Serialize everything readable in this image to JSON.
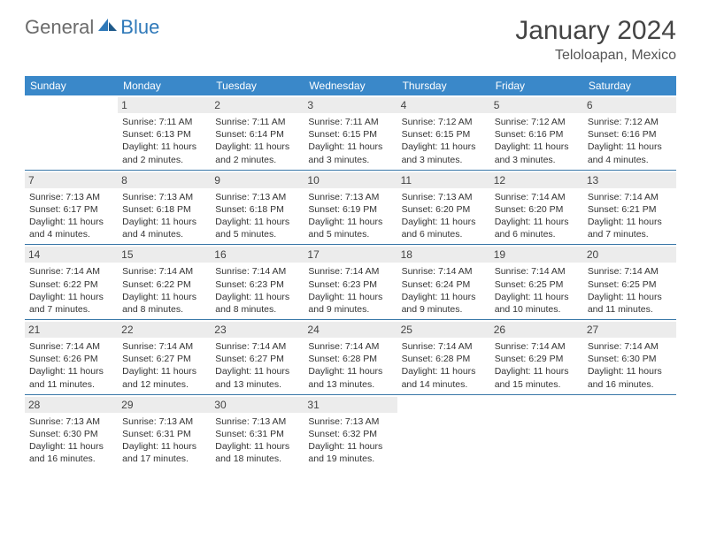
{
  "brand": {
    "g": "General",
    "b": "Blue"
  },
  "title": "January 2024",
  "location": "Teloloapan, Mexico",
  "colors": {
    "header_bg": "#3a88c9",
    "header_text": "#ffffff",
    "daynum_bg": "#ececec",
    "border": "#3a78a8",
    "logo_gray": "#6b6b6b",
    "logo_blue": "#2f79b9"
  },
  "weekdays": [
    "Sunday",
    "Monday",
    "Tuesday",
    "Wednesday",
    "Thursday",
    "Friday",
    "Saturday"
  ],
  "first_weekday_index": 1,
  "days": [
    {
      "n": 1,
      "sr": "7:11 AM",
      "ss": "6:13 PM",
      "dl": "11 hours and 2 minutes."
    },
    {
      "n": 2,
      "sr": "7:11 AM",
      "ss": "6:14 PM",
      "dl": "11 hours and 2 minutes."
    },
    {
      "n": 3,
      "sr": "7:11 AM",
      "ss": "6:15 PM",
      "dl": "11 hours and 3 minutes."
    },
    {
      "n": 4,
      "sr": "7:12 AM",
      "ss": "6:15 PM",
      "dl": "11 hours and 3 minutes."
    },
    {
      "n": 5,
      "sr": "7:12 AM",
      "ss": "6:16 PM",
      "dl": "11 hours and 3 minutes."
    },
    {
      "n": 6,
      "sr": "7:12 AM",
      "ss": "6:16 PM",
      "dl": "11 hours and 4 minutes."
    },
    {
      "n": 7,
      "sr": "7:13 AM",
      "ss": "6:17 PM",
      "dl": "11 hours and 4 minutes."
    },
    {
      "n": 8,
      "sr": "7:13 AM",
      "ss": "6:18 PM",
      "dl": "11 hours and 4 minutes."
    },
    {
      "n": 9,
      "sr": "7:13 AM",
      "ss": "6:18 PM",
      "dl": "11 hours and 5 minutes."
    },
    {
      "n": 10,
      "sr": "7:13 AM",
      "ss": "6:19 PM",
      "dl": "11 hours and 5 minutes."
    },
    {
      "n": 11,
      "sr": "7:13 AM",
      "ss": "6:20 PM",
      "dl": "11 hours and 6 minutes."
    },
    {
      "n": 12,
      "sr": "7:14 AM",
      "ss": "6:20 PM",
      "dl": "11 hours and 6 minutes."
    },
    {
      "n": 13,
      "sr": "7:14 AM",
      "ss": "6:21 PM",
      "dl": "11 hours and 7 minutes."
    },
    {
      "n": 14,
      "sr": "7:14 AM",
      "ss": "6:22 PM",
      "dl": "11 hours and 7 minutes."
    },
    {
      "n": 15,
      "sr": "7:14 AM",
      "ss": "6:22 PM",
      "dl": "11 hours and 8 minutes."
    },
    {
      "n": 16,
      "sr": "7:14 AM",
      "ss": "6:23 PM",
      "dl": "11 hours and 8 minutes."
    },
    {
      "n": 17,
      "sr": "7:14 AM",
      "ss": "6:23 PM",
      "dl": "11 hours and 9 minutes."
    },
    {
      "n": 18,
      "sr": "7:14 AM",
      "ss": "6:24 PM",
      "dl": "11 hours and 9 minutes."
    },
    {
      "n": 19,
      "sr": "7:14 AM",
      "ss": "6:25 PM",
      "dl": "11 hours and 10 minutes."
    },
    {
      "n": 20,
      "sr": "7:14 AM",
      "ss": "6:25 PM",
      "dl": "11 hours and 11 minutes."
    },
    {
      "n": 21,
      "sr": "7:14 AM",
      "ss": "6:26 PM",
      "dl": "11 hours and 11 minutes."
    },
    {
      "n": 22,
      "sr": "7:14 AM",
      "ss": "6:27 PM",
      "dl": "11 hours and 12 minutes."
    },
    {
      "n": 23,
      "sr": "7:14 AM",
      "ss": "6:27 PM",
      "dl": "11 hours and 13 minutes."
    },
    {
      "n": 24,
      "sr": "7:14 AM",
      "ss": "6:28 PM",
      "dl": "11 hours and 13 minutes."
    },
    {
      "n": 25,
      "sr": "7:14 AM",
      "ss": "6:28 PM",
      "dl": "11 hours and 14 minutes."
    },
    {
      "n": 26,
      "sr": "7:14 AM",
      "ss": "6:29 PM",
      "dl": "11 hours and 15 minutes."
    },
    {
      "n": 27,
      "sr": "7:14 AM",
      "ss": "6:30 PM",
      "dl": "11 hours and 16 minutes."
    },
    {
      "n": 28,
      "sr": "7:13 AM",
      "ss": "6:30 PM",
      "dl": "11 hours and 16 minutes."
    },
    {
      "n": 29,
      "sr": "7:13 AM",
      "ss": "6:31 PM",
      "dl": "11 hours and 17 minutes."
    },
    {
      "n": 30,
      "sr": "7:13 AM",
      "ss": "6:31 PM",
      "dl": "11 hours and 18 minutes."
    },
    {
      "n": 31,
      "sr": "7:13 AM",
      "ss": "6:32 PM",
      "dl": "11 hours and 19 minutes."
    }
  ],
  "labels": {
    "sunrise": "Sunrise: ",
    "sunset": "Sunset: ",
    "daylight": "Daylight: "
  }
}
